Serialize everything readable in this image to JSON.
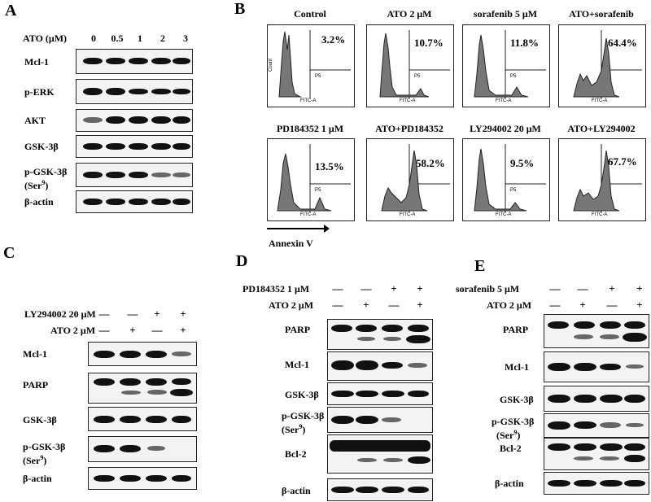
{
  "panelA": {
    "letter": "A",
    "header": "ATO (μM)",
    "doses": [
      "0",
      "0.5",
      "1",
      "2",
      "3"
    ],
    "rows": [
      "Mcl-1",
      "p-ERK",
      "AKT",
      "GSK-3β",
      "p-GSK-3β",
      "(Ser",
      "9",
      ")",
      "β-actin"
    ]
  },
  "panelB": {
    "letter": "B",
    "titles": [
      "Control",
      "ATO 2 μM",
      "sorafenib 5  μM",
      "ATO+sorafenib",
      "PD184352 1  μM",
      "ATO+PD184352",
      "LY294002 20 μM",
      "ATO+LY294002"
    ],
    "percents": [
      "3.2%",
      "10.7%",
      "11.8%",
      "64.4%",
      "13.5%",
      "58.2%",
      "9.5%",
      "67.7%"
    ],
    "gate_label": "P5",
    "x_axis": "FITC-A",
    "y_axis": "Count",
    "arrow_label": "Annexin V"
  },
  "panelC": {
    "letter": "C",
    "treat1": "LY294002 20  μM",
    "treat2": "ATO 2  μM",
    "signs1": [
      "—",
      "—",
      "+",
      "+"
    ],
    "signs2": [
      "—",
      "+",
      "—",
      "+"
    ],
    "rows": [
      "Mcl-1",
      "PARP",
      "GSK-3β",
      "p-GSK-3β",
      "(Ser",
      "9",
      ")",
      "β-actin"
    ]
  },
  "panelD": {
    "letter": "D",
    "treat1": "PD184352 1  μM",
    "treat2": "ATO 2 μM",
    "signs1": [
      "—",
      "—",
      "+",
      "+"
    ],
    "signs2": [
      "—",
      "+",
      "—",
      "+"
    ],
    "rows": [
      "PARP",
      "Mcl-1",
      "GSK-3β",
      "p-GSK-3β",
      "(Ser",
      "9",
      ")",
      "Bcl-2",
      "β-actin"
    ]
  },
  "panelE": {
    "letter": "E",
    "treat1": "sorafenib 5 μM",
    "treat2": "ATO 2 μM",
    "signs1": [
      "—",
      "—",
      "+",
      "+"
    ],
    "signs2": [
      "—",
      "+",
      "—",
      "+"
    ],
    "rows": [
      "PARP",
      "Mcl-1",
      "GSK-3β",
      "p-GSK-3β",
      "(Ser",
      "9",
      ")",
      "Bcl-2",
      "β-actin"
    ]
  }
}
